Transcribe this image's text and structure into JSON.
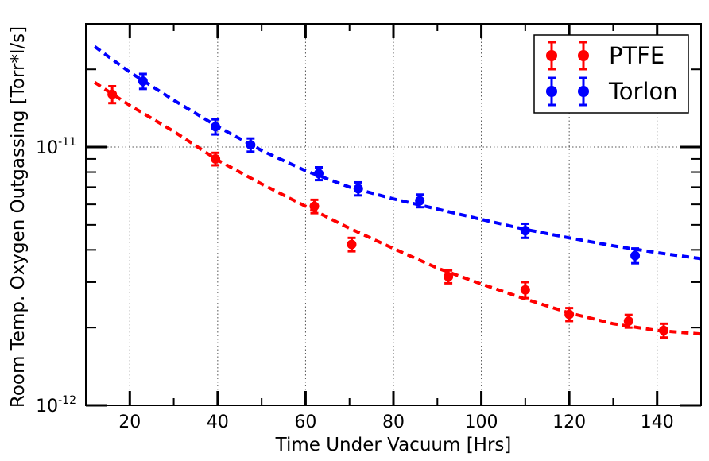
{
  "chart_data": {
    "type": "scatter",
    "title": "",
    "xlabel": "Time Under Vacuum [Hrs]",
    "ylabel": "Room Temp. Oxygen Outgassing [Torr*l/s]",
    "xlim": [
      10,
      150
    ],
    "ylim": [
      1e-12,
      3e-11
    ],
    "yscale": "log",
    "grid": true,
    "legend_position": "top-right",
    "x_ticks": [
      {
        "value": 20,
        "label": "20"
      },
      {
        "value": 40,
        "label": "40"
      },
      {
        "value": 60,
        "label": "60"
      },
      {
        "value": 80,
        "label": "80"
      },
      {
        "value": 100,
        "label": "100"
      },
      {
        "value": 120,
        "label": "120"
      },
      {
        "value": 140,
        "label": "140"
      }
    ],
    "y_ticks": [
      {
        "value": 1e-12,
        "base": "10",
        "exp": "-12"
      },
      {
        "value": 1e-11,
        "base": "10",
        "exp": "-11"
      }
    ],
    "series": [
      {
        "name": "PTFE",
        "color": "#ff0000",
        "points": [
          {
            "x": 16,
            "y": 1.6e-11,
            "err": 1.2e-12
          },
          {
            "x": 39.5,
            "y": 9e-12,
            "err": 5e-13
          },
          {
            "x": 62,
            "y": 5.9e-12,
            "err": 3.5e-13
          },
          {
            "x": 70.5,
            "y": 4.2e-12,
            "err": 2.5e-13
          },
          {
            "x": 92.5,
            "y": 3.15e-12,
            "err": 1.8e-13
          },
          {
            "x": 110,
            "y": 2.8e-12,
            "err": 2e-13
          },
          {
            "x": 120,
            "y": 2.25e-12,
            "err": 1.3e-13
          },
          {
            "x": 133.5,
            "y": 2.12e-12,
            "err": 1.2e-13
          },
          {
            "x": 141.5,
            "y": 1.95e-12,
            "err": 1.2e-13
          }
        ],
        "fit": [
          {
            "x": 12,
            "y": 1.78e-11
          },
          {
            "x": 20,
            "y": 1.45e-11
          },
          {
            "x": 30,
            "y": 1.15e-11
          },
          {
            "x": 40,
            "y": 8.9e-12
          },
          {
            "x": 50,
            "y": 7.2e-12
          },
          {
            "x": 60,
            "y": 5.9e-12
          },
          {
            "x": 70,
            "y": 4.85e-12
          },
          {
            "x": 80,
            "y": 4.05e-12
          },
          {
            "x": 90,
            "y": 3.4e-12
          },
          {
            "x": 100,
            "y": 2.95e-12
          },
          {
            "x": 110,
            "y": 2.58e-12
          },
          {
            "x": 120,
            "y": 2.28e-12
          },
          {
            "x": 130,
            "y": 2.07e-12
          },
          {
            "x": 140,
            "y": 1.95e-12
          },
          {
            "x": 150,
            "y": 1.89e-12
          }
        ]
      },
      {
        "name": "Torlon",
        "color": "#0000ff",
        "points": [
          {
            "x": 23,
            "y": 1.8e-11,
            "err": 1.2e-12
          },
          {
            "x": 39.5,
            "y": 1.2e-11,
            "err": 8e-13
          },
          {
            "x": 47.5,
            "y": 1.02e-11,
            "err": 6e-13
          },
          {
            "x": 63,
            "y": 7.9e-12,
            "err": 4.5e-13
          },
          {
            "x": 72,
            "y": 6.9e-12,
            "err": 4e-13
          },
          {
            "x": 86,
            "y": 6.2e-12,
            "err": 3.5e-13
          },
          {
            "x": 110,
            "y": 4.75e-12,
            "err": 3e-13
          },
          {
            "x": 135,
            "y": 3.8e-12,
            "err": 2.5e-13
          }
        ],
        "fit": [
          {
            "x": 12,
            "y": 2.45e-11
          },
          {
            "x": 20,
            "y": 1.95e-11
          },
          {
            "x": 30,
            "y": 1.52e-11
          },
          {
            "x": 40,
            "y": 1.2e-11
          },
          {
            "x": 50,
            "y": 9.7e-12
          },
          {
            "x": 60,
            "y": 8.1e-12
          },
          {
            "x": 70,
            "y": 7e-12
          },
          {
            "x": 80,
            "y": 6.3e-12
          },
          {
            "x": 90,
            "y": 5.75e-12
          },
          {
            "x": 100,
            "y": 5.25e-12
          },
          {
            "x": 110,
            "y": 4.8e-12
          },
          {
            "x": 120,
            "y": 4.45e-12
          },
          {
            "x": 130,
            "y": 4.15e-12
          },
          {
            "x": 140,
            "y": 3.9e-12
          },
          {
            "x": 150,
            "y": 3.7e-12
          }
        ]
      }
    ]
  }
}
